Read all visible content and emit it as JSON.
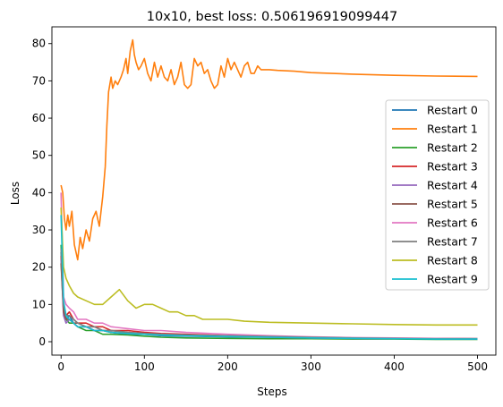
{
  "chart_data": {
    "type": "line",
    "title": "10x10, best loss: 0.506196919099447",
    "xlabel": "Steps",
    "ylabel": "Loss",
    "xlim": [
      -11,
      522
    ],
    "ylim": [
      -3.6,
      84.5
    ],
    "xticks": [
      0,
      100,
      200,
      300,
      400,
      500
    ],
    "yticks": [
      0,
      10,
      20,
      30,
      40,
      50,
      60,
      70,
      80
    ],
    "grid": false,
    "legend_position": "center-right",
    "series": [
      {
        "name": "Restart 0",
        "color": "#1f77b4",
        "x": [
          0,
          3,
          6,
          10,
          15,
          20,
          30,
          40,
          50,
          60,
          80,
          100,
          120,
          150,
          200,
          250,
          300,
          350,
          400,
          450,
          500
        ],
        "y": [
          24,
          8,
          6,
          7,
          5,
          4,
          4,
          3,
          3,
          2.5,
          2,
          2,
          1.6,
          1.5,
          1.3,
          1.2,
          1.1,
          1.0,
          0.9,
          0.8,
          0.8
        ]
      },
      {
        "name": "Restart 1",
        "color": "#ff7f0e",
        "x": [
          0,
          2,
          4,
          6,
          8,
          10,
          13,
          16,
          20,
          23,
          26,
          30,
          34,
          38,
          42,
          46,
          50,
          53,
          55,
          57,
          60,
          62,
          65,
          68,
          72,
          75,
          78,
          80,
          83,
          86,
          88,
          90,
          93,
          96,
          100,
          104,
          108,
          112,
          116,
          120,
          124,
          128,
          132,
          136,
          140,
          144,
          148,
          152,
          156,
          160,
          164,
          168,
          172,
          176,
          180,
          184,
          188,
          192,
          196,
          200,
          204,
          208,
          212,
          216,
          220,
          224,
          228,
          232,
          236,
          240,
          245,
          250,
          260,
          280,
          300,
          350,
          400,
          450,
          500
        ],
        "y": [
          42,
          40,
          33,
          30,
          34,
          31,
          35,
          26,
          22,
          28,
          25,
          30,
          27,
          33,
          35,
          31,
          39,
          47,
          58,
          67,
          71,
          68,
          70,
          69,
          71,
          73,
          76,
          72,
          78,
          81,
          77,
          75,
          73,
          74,
          76,
          72,
          70,
          75,
          71,
          74,
          71,
          70,
          73,
          69,
          71,
          75,
          69,
          68,
          69,
          76,
          74,
          75,
          72,
          73,
          70,
          68,
          69,
          74,
          71,
          76,
          73,
          75,
          73,
          71,
          74,
          75,
          72,
          72,
          74,
          73,
          73,
          73,
          72.8,
          72.6,
          72.2,
          71.8,
          71.5,
          71.3,
          71.2
        ]
      },
      {
        "name": "Restart 2",
        "color": "#2ca02c",
        "x": [
          0,
          3,
          6,
          10,
          15,
          20,
          30,
          40,
          50,
          60,
          80,
          100,
          120,
          150,
          200,
          250,
          300,
          350,
          400,
          450,
          500
        ],
        "y": [
          26,
          10,
          6,
          5,
          5,
          4,
          3,
          3,
          2,
          2,
          1.8,
          1.5,
          1.2,
          1.0,
          0.9,
          0.8,
          0.8,
          0.7,
          0.7,
          0.6,
          0.6
        ]
      },
      {
        "name": "Restart 3",
        "color": "#d62728",
        "x": [
          0,
          3,
          6,
          10,
          15,
          20,
          30,
          40,
          50,
          60,
          80,
          100,
          120,
          150,
          200,
          250,
          300,
          350,
          400,
          450,
          500
        ],
        "y": [
          23,
          9,
          7,
          8,
          6,
          5,
          5,
          4,
          4,
          3,
          3,
          2.5,
          2.2,
          2.0,
          1.6,
          1.4,
          1.2,
          1.0,
          0.9,
          0.9,
          0.8
        ]
      },
      {
        "name": "Restart 4",
        "color": "#9467bd",
        "x": [
          0,
          3,
          6,
          10,
          15,
          20,
          30,
          40,
          50,
          60,
          80,
          100,
          120,
          150,
          200,
          250,
          300,
          350,
          400,
          450,
          500
        ],
        "y": [
          22,
          7,
          5,
          6,
          5,
          4,
          4,
          3,
          3,
          2.5,
          2.2,
          2,
          1.8,
          1.6,
          1.4,
          1.2,
          1.0,
          0.9,
          0.8,
          0.8,
          0.7
        ]
      },
      {
        "name": "Restart 5",
        "color": "#8c564b",
        "x": [
          0,
          3,
          6,
          10,
          15,
          20,
          30,
          40,
          50,
          60,
          80,
          100,
          120,
          150,
          200,
          250,
          300,
          350,
          400,
          450,
          500
        ],
        "y": [
          21,
          8,
          6,
          6,
          5,
          5,
          4,
          4,
          3,
          3,
          2.5,
          2.2,
          2.0,
          1.8,
          1.5,
          1.3,
          1.1,
          1.0,
          0.9,
          0.8,
          0.7
        ]
      },
      {
        "name": "Restart 6",
        "color": "#e377c2",
        "x": [
          0,
          3,
          6,
          10,
          15,
          20,
          30,
          40,
          50,
          60,
          80,
          100,
          120,
          150,
          200,
          250,
          300,
          350,
          400,
          450,
          500
        ],
        "y": [
          40,
          12,
          10,
          9,
          8,
          6,
          6,
          5,
          5,
          4,
          3.5,
          3,
          3,
          2.5,
          2,
          1.6,
          1.3,
          1.1,
          1.0,
          0.9,
          0.8
        ]
      },
      {
        "name": "Restart 7",
        "color": "#7f7f7f",
        "x": [
          0,
          3,
          6,
          10,
          15,
          20,
          30,
          40,
          50,
          60,
          80,
          100,
          120,
          150,
          200,
          250,
          300,
          350,
          400,
          450,
          500
        ],
        "y": [
          25,
          10,
          7,
          7,
          6,
          5,
          4,
          4,
          3,
          3,
          2.5,
          2.2,
          2.0,
          1.8,
          1.6,
          1.4,
          1.2,
          1.0,
          0.9,
          0.8,
          0.8
        ]
      },
      {
        "name": "Restart 8",
        "color": "#bcbd22",
        "x": [
          0,
          3,
          6,
          10,
          15,
          20,
          30,
          40,
          50,
          60,
          70,
          80,
          90,
          100,
          110,
          120,
          130,
          140,
          150,
          160,
          170,
          180,
          200,
          220,
          250,
          300,
          350,
          400,
          450,
          500
        ],
        "y": [
          36,
          20,
          17,
          15,
          13,
          12,
          11,
          10,
          10,
          12,
          14,
          11,
          9,
          10,
          10,
          9,
          8,
          8,
          7,
          7,
          6,
          6,
          6,
          5.5,
          5.2,
          5.0,
          4.8,
          4.6,
          4.5,
          4.5
        ]
      },
      {
        "name": "Restart 9",
        "color": "#17becf",
        "x": [
          0,
          3,
          6,
          10,
          15,
          20,
          30,
          40,
          50,
          60,
          80,
          100,
          120,
          150,
          200,
          250,
          300,
          350,
          400,
          450,
          500
        ],
        "y": [
          34,
          11,
          7,
          6,
          5,
          4,
          4,
          3,
          3,
          2.5,
          2.2,
          2,
          1.8,
          1.6,
          1.4,
          1.2,
          1.0,
          0.9,
          0.8,
          0.7,
          0.7
        ]
      }
    ]
  }
}
